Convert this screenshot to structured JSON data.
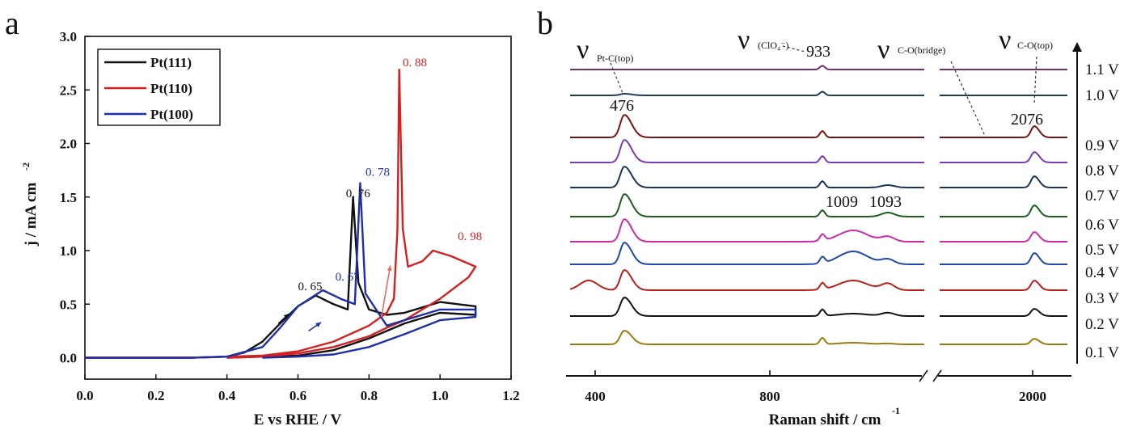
{
  "panel_labels": {
    "a": "a",
    "b": "b"
  },
  "chart_data": [
    {
      "type": "line",
      "panel": "a",
      "xlabel": "E vs RHE / V",
      "ylabel": "j / mA cm",
      "ylabel_sup": "-2",
      "xlim": [
        0.0,
        1.2
      ],
      "ylim": [
        -0.2,
        3.0
      ],
      "xticks": [
        "0.0",
        "0.2",
        "0.4",
        "0.6",
        "0.8",
        "1.0",
        "1.2"
      ],
      "yticks": [
        "0.0",
        "0.5",
        "1.0",
        "1.5",
        "2.0",
        "2.5",
        "3.0"
      ],
      "legend": {
        "position": "top-left",
        "entries": [
          "Pt(111)",
          "Pt(110)",
          "Pt(100)"
        ]
      },
      "series": [
        {
          "name": "Pt(111)",
          "color": "#111111",
          "forward": [
            [
              0.0,
              0.0
            ],
            [
              0.1,
              0.0
            ],
            [
              0.3,
              0.0
            ],
            [
              0.4,
              0.01
            ],
            [
              0.45,
              0.05
            ],
            [
              0.5,
              0.15
            ],
            [
              0.55,
              0.32
            ],
            [
              0.6,
              0.48
            ],
            [
              0.65,
              0.58
            ],
            [
              0.7,
              0.5
            ],
            [
              0.74,
              0.45
            ],
            [
              0.755,
              1.5
            ],
            [
              0.77,
              0.7
            ],
            [
              0.8,
              0.45
            ],
            [
              0.85,
              0.4
            ],
            [
              0.9,
              0.42
            ],
            [
              1.0,
              0.52
            ],
            [
              1.05,
              0.5
            ],
            [
              1.1,
              0.48
            ]
          ],
          "reverse": [
            [
              1.1,
              0.4
            ],
            [
              1.0,
              0.42
            ],
            [
              0.9,
              0.32
            ],
            [
              0.8,
              0.18
            ],
            [
              0.7,
              0.07
            ],
            [
              0.6,
              0.02
            ],
            [
              0.5,
              0.01
            ],
            [
              0.4,
              0.0
            ]
          ]
        },
        {
          "name": "Pt(110)",
          "color": "#d42020",
          "forward": [
            [
              0.0,
              0.0
            ],
            [
              0.1,
              0.0
            ],
            [
              0.3,
              0.0
            ],
            [
              0.5,
              0.02
            ],
            [
              0.6,
              0.06
            ],
            [
              0.7,
              0.15
            ],
            [
              0.8,
              0.3
            ],
            [
              0.85,
              0.42
            ],
            [
              0.87,
              0.55
            ],
            [
              0.88,
              1.2
            ],
            [
              0.885,
              2.69
            ],
            [
              0.895,
              1.2
            ],
            [
              0.91,
              0.85
            ],
            [
              0.95,
              0.9
            ],
            [
              0.98,
              1.0
            ],
            [
              1.03,
              0.95
            ],
            [
              1.1,
              0.85
            ]
          ],
          "reverse": [
            [
              1.1,
              0.85
            ],
            [
              1.08,
              0.75
            ],
            [
              1.0,
              0.55
            ],
            [
              0.95,
              0.45
            ],
            [
              0.9,
              0.35
            ],
            [
              0.85,
              0.28
            ],
            [
              0.8,
              0.2
            ],
            [
              0.7,
              0.1
            ],
            [
              0.6,
              0.04
            ],
            [
              0.5,
              0.01
            ],
            [
              0.4,
              0.0
            ]
          ]
        },
        {
          "name": "Pt(100)",
          "color": "#1f2fa8",
          "forward": [
            [
              0.0,
              0.0
            ],
            [
              0.1,
              0.0
            ],
            [
              0.3,
              0.0
            ],
            [
              0.4,
              0.01
            ],
            [
              0.5,
              0.1
            ],
            [
              0.55,
              0.28
            ],
            [
              0.6,
              0.48
            ],
            [
              0.67,
              0.63
            ],
            [
              0.72,
              0.55
            ],
            [
              0.76,
              0.5
            ],
            [
              0.775,
              1.63
            ],
            [
              0.79,
              0.6
            ],
            [
              0.85,
              0.3
            ],
            [
              0.9,
              0.35
            ],
            [
              1.0,
              0.45
            ],
            [
              1.1,
              0.45
            ]
          ],
          "reverse": [
            [
              1.1,
              0.38
            ],
            [
              1.0,
              0.35
            ],
            [
              0.9,
              0.22
            ],
            [
              0.8,
              0.1
            ],
            [
              0.7,
              0.03
            ],
            [
              0.6,
              0.01
            ],
            [
              0.5,
              0.0
            ]
          ]
        }
      ],
      "annotations": [
        {
          "text": "0. 65",
          "x": 0.6,
          "y": 0.63,
          "color": "#111111"
        },
        {
          "text": "0. 67",
          "x": 0.705,
          "y": 0.72,
          "color": "#1f2fa8"
        },
        {
          "text": "0. 76",
          "x": 0.735,
          "y": 1.5,
          "color": "#111111"
        },
        {
          "text": "0. 78",
          "x": 0.79,
          "y": 1.7,
          "color": "#1f2fa8"
        },
        {
          "text": "0. 88",
          "x": 0.895,
          "y": 2.72,
          "color": "#d42020"
        },
        {
          "text": "0. 98",
          "x": 1.05,
          "y": 1.1,
          "color": "#d42020"
        }
      ]
    },
    {
      "type": "line",
      "panel": "b",
      "xlabel": "Raman shift / cm",
      "xlabel_sup": "-1",
      "xticks": [
        "400",
        "800",
        "2000"
      ],
      "potentials": [
        "1.1 V",
        "1.0 V",
        "0.9 V",
        "0.8 V",
        "0.7 V",
        "0.6 V",
        "0.5 V",
        "0.4 V",
        "0.3 V",
        "0.2 V",
        "0.1 V"
      ],
      "colors": [
        "#7a2e6e",
        "#1e3d5c",
        "#7a1414",
        "#7b3bb5",
        "#1c3556",
        "#1e5c20",
        "#cc2ca6",
        "#2148a8",
        "#b8201e",
        "#111111",
        "#9a7d12"
      ],
      "peak_labels": [
        "476",
        "933",
        "1009",
        "1093",
        "2076"
      ],
      "bands": [
        {
          "symbol": "ν",
          "sub": "Pt-C(top)"
        },
        {
          "symbol": "ν",
          "sub": "(ClO₄⁻)"
        },
        {
          "symbol": "ν",
          "sub": "C-O(bridge)"
        },
        {
          "symbol": "ν",
          "sub": "C-O(top)"
        }
      ]
    }
  ]
}
